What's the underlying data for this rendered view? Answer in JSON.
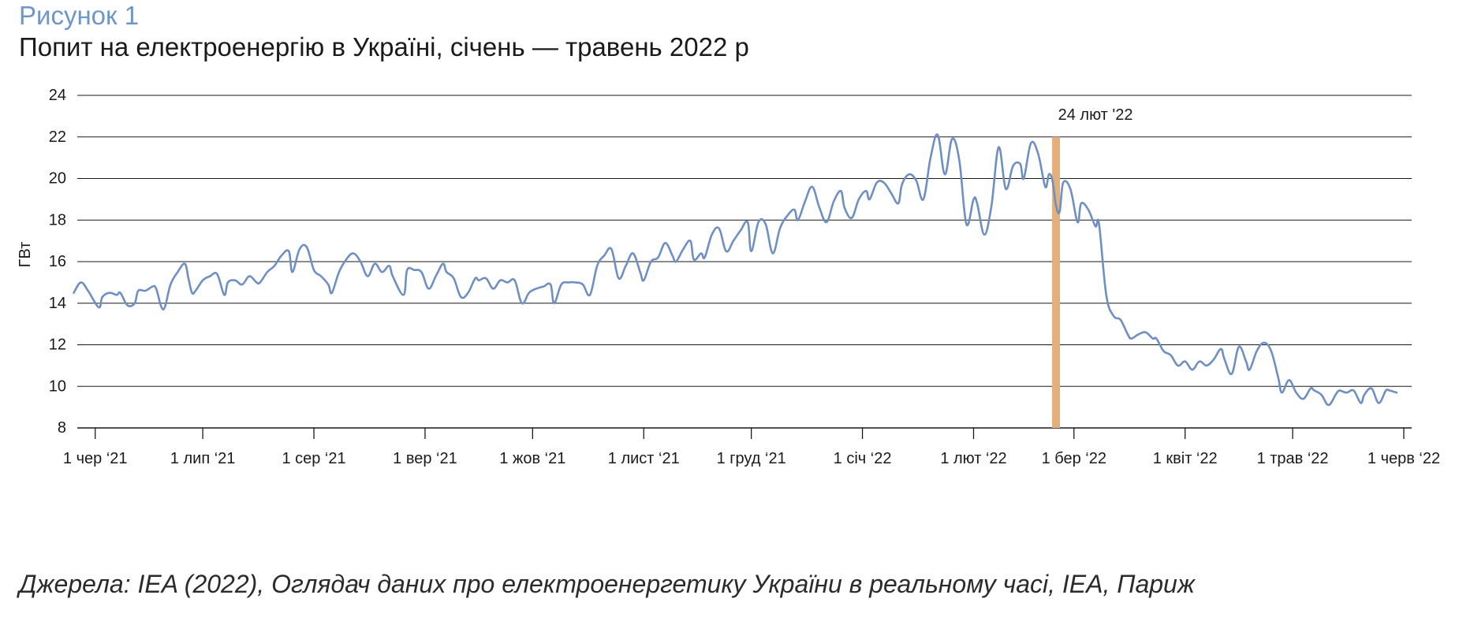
{
  "figure": {
    "label": "Рисунок 1",
    "title": "Попит на електроенергію в Україні, січень — травень 2022 р",
    "source": "Джерела: IEA (2022), Оглядач даних про електроенергетику України в реальному часі, IEA, Париж"
  },
  "colors": {
    "line": "#6f8fc3",
    "marker": "#e3b07c",
    "grid": "#1a1a1a",
    "label_accent": "#6f95c9"
  },
  "chart_data": {
    "type": "line",
    "title": "Попит на електроенергію в Україні, січень — травень 2022 р",
    "xlabel": "",
    "ylabel": "ГВт",
    "ylim": [
      8,
      24
    ],
    "yticks": [
      8,
      10,
      12,
      14,
      16,
      18,
      20,
      22,
      24
    ],
    "xlim": [
      "2021-05-27",
      "2022-06-01"
    ],
    "grid": "horizontal",
    "xticks": [
      {
        "date": "2021-06-01",
        "label": "1 чер ‘21"
      },
      {
        "date": "2021-07-01",
        "label": "1 лип ‘21"
      },
      {
        "date": "2021-08-01",
        "label": "1 сер ‘21"
      },
      {
        "date": "2021-09-01",
        "label": "1 вер ‘21"
      },
      {
        "date": "2021-10-01",
        "label": "1 жов ‘21"
      },
      {
        "date": "2021-11-01",
        "label": "1 лист ‘21"
      },
      {
        "date": "2021-12-01",
        "label": "1 груд ‘21"
      },
      {
        "date": "2022-01-01",
        "label": "1 січ ‘22"
      },
      {
        "date": "2022-02-01",
        "label": "1 лют ‘22"
      },
      {
        "date": "2022-03-01",
        "label": "1 бер ‘22"
      },
      {
        "date": "2022-04-01",
        "label": "1 квіт ‘22"
      },
      {
        "date": "2022-05-01",
        "label": "1 трав ‘22"
      },
      {
        "date": "2022-06-01",
        "label": "1 черв ‘22"
      }
    ],
    "annotation": {
      "date": "2022-02-24",
      "label": "24 лют '22"
    },
    "series": [
      {
        "points": [
          [
            "2021-05-26",
            14.5
          ],
          [
            "2021-05-28",
            15.0
          ],
          [
            "2021-05-30",
            14.6
          ],
          [
            "2021-06-02",
            13.8
          ],
          [
            "2021-06-03",
            14.3
          ],
          [
            "2021-06-05",
            14.5
          ],
          [
            "2021-06-07",
            14.4
          ],
          [
            "2021-06-08",
            14.5
          ],
          [
            "2021-06-10",
            13.9
          ],
          [
            "2021-06-12",
            14.0
          ],
          [
            "2021-06-13",
            14.6
          ],
          [
            "2021-06-15",
            14.6
          ],
          [
            "2021-06-17",
            14.8
          ],
          [
            "2021-06-18",
            14.7
          ],
          [
            "2021-06-20",
            13.7
          ],
          [
            "2021-06-22",
            14.9
          ],
          [
            "2021-06-24",
            15.5
          ],
          [
            "2021-06-26",
            15.9
          ],
          [
            "2021-06-27",
            15.2
          ],
          [
            "2021-06-28",
            14.5
          ],
          [
            "2021-06-29",
            14.6
          ],
          [
            "2021-07-01",
            15.1
          ],
          [
            "2021-07-03",
            15.3
          ],
          [
            "2021-07-05",
            15.4
          ],
          [
            "2021-07-07",
            14.4
          ],
          [
            "2021-07-08",
            15.0
          ],
          [
            "2021-07-10",
            15.1
          ],
          [
            "2021-07-12",
            14.9
          ],
          [
            "2021-07-14",
            15.3
          ],
          [
            "2021-07-16",
            15.0
          ],
          [
            "2021-07-17",
            15.0
          ],
          [
            "2021-07-19",
            15.5
          ],
          [
            "2021-07-21",
            15.8
          ],
          [
            "2021-07-23",
            16.3
          ],
          [
            "2021-07-25",
            16.5
          ],
          [
            "2021-07-26",
            15.5
          ],
          [
            "2021-07-28",
            16.6
          ],
          [
            "2021-07-30",
            16.7
          ],
          [
            "2021-08-01",
            15.6
          ],
          [
            "2021-08-03",
            15.3
          ],
          [
            "2021-08-05",
            14.9
          ],
          [
            "2021-08-06",
            14.5
          ],
          [
            "2021-08-08",
            15.5
          ],
          [
            "2021-08-10",
            16.1
          ],
          [
            "2021-08-12",
            16.4
          ],
          [
            "2021-08-14",
            16.0
          ],
          [
            "2021-08-16",
            15.3
          ],
          [
            "2021-08-18",
            15.9
          ],
          [
            "2021-08-20",
            15.5
          ],
          [
            "2021-08-22",
            15.8
          ],
          [
            "2021-08-23",
            15.3
          ],
          [
            "2021-08-26",
            14.4
          ],
          [
            "2021-08-27",
            15.6
          ],
          [
            "2021-08-29",
            15.6
          ],
          [
            "2021-08-31",
            15.5
          ],
          [
            "2021-09-02",
            14.7
          ],
          [
            "2021-09-04",
            15.3
          ],
          [
            "2021-09-06",
            15.9
          ],
          [
            "2021-09-07",
            15.5
          ],
          [
            "2021-09-09",
            15.2
          ],
          [
            "2021-09-11",
            14.3
          ],
          [
            "2021-09-13",
            14.5
          ],
          [
            "2021-09-15",
            15.2
          ],
          [
            "2021-09-16",
            15.1
          ],
          [
            "2021-09-18",
            15.2
          ],
          [
            "2021-09-20",
            14.7
          ],
          [
            "2021-09-22",
            15.1
          ],
          [
            "2021-09-24",
            15.0
          ],
          [
            "2021-09-26",
            15.1
          ],
          [
            "2021-09-28",
            14.0
          ],
          [
            "2021-09-30",
            14.5
          ],
          [
            "2021-10-02",
            14.7
          ],
          [
            "2021-10-04",
            14.8
          ],
          [
            "2021-10-06",
            14.9
          ],
          [
            "2021-10-07",
            14.0
          ],
          [
            "2021-10-09",
            14.9
          ],
          [
            "2021-10-11",
            15.0
          ],
          [
            "2021-10-13",
            15.0
          ],
          [
            "2021-10-15",
            14.9
          ],
          [
            "2021-10-17",
            14.4
          ],
          [
            "2021-10-19",
            15.8
          ],
          [
            "2021-10-21",
            16.3
          ],
          [
            "2021-10-23",
            16.6
          ],
          [
            "2021-10-25",
            15.2
          ],
          [
            "2021-10-27",
            15.8
          ],
          [
            "2021-10-29",
            16.4
          ],
          [
            "2021-10-31",
            15.5
          ],
          [
            "2021-11-01",
            15.1
          ],
          [
            "2021-11-03",
            16.0
          ],
          [
            "2021-11-05",
            16.2
          ],
          [
            "2021-11-07",
            16.9
          ],
          [
            "2021-11-09",
            16.3
          ],
          [
            "2021-11-10",
            16.0
          ],
          [
            "2021-11-12",
            16.6
          ],
          [
            "2021-11-14",
            17.0
          ],
          [
            "2021-11-15",
            16.1
          ],
          [
            "2021-11-17",
            16.4
          ],
          [
            "2021-11-18",
            16.2
          ],
          [
            "2021-11-20",
            17.3
          ],
          [
            "2021-11-22",
            17.6
          ],
          [
            "2021-11-24",
            16.5
          ],
          [
            "2021-11-26",
            17.0
          ],
          [
            "2021-11-28",
            17.5
          ],
          [
            "2021-11-30",
            17.9
          ],
          [
            "2021-12-01",
            16.5
          ],
          [
            "2021-12-03",
            17.9
          ],
          [
            "2021-12-05",
            17.8
          ],
          [
            "2021-12-07",
            16.4
          ],
          [
            "2021-12-09",
            17.6
          ],
          [
            "2021-12-11",
            18.2
          ],
          [
            "2021-12-13",
            18.5
          ],
          [
            "2021-12-14",
            18.0
          ],
          [
            "2021-12-16",
            18.9
          ],
          [
            "2021-12-18",
            19.6
          ],
          [
            "2021-12-20",
            18.6
          ],
          [
            "2021-12-22",
            17.9
          ],
          [
            "2021-12-24",
            18.9
          ],
          [
            "2021-12-26",
            19.4
          ],
          [
            "2021-12-27",
            18.6
          ],
          [
            "2021-12-29",
            18.1
          ],
          [
            "2021-12-31",
            19.0
          ],
          [
            "2022-01-02",
            19.4
          ],
          [
            "2022-01-03",
            19.0
          ],
          [
            "2022-01-05",
            19.8
          ],
          [
            "2022-01-07",
            19.8
          ],
          [
            "2022-01-09",
            19.3
          ],
          [
            "2022-01-11",
            18.8
          ],
          [
            "2022-01-12",
            19.7
          ],
          [
            "2022-01-14",
            20.2
          ],
          [
            "2022-01-16",
            19.9
          ],
          [
            "2022-01-18",
            19.0
          ],
          [
            "2022-01-20",
            21.0
          ],
          [
            "2022-01-22",
            22.1
          ],
          [
            "2022-01-24",
            20.2
          ],
          [
            "2022-01-26",
            21.9
          ],
          [
            "2022-01-28",
            20.9
          ],
          [
            "2022-01-30",
            17.8
          ],
          [
            "2022-02-01",
            19.0
          ],
          [
            "2022-02-02",
            18.8
          ],
          [
            "2022-02-04",
            17.3
          ],
          [
            "2022-02-06",
            18.7
          ],
          [
            "2022-02-08",
            21.5
          ],
          [
            "2022-02-10",
            19.5
          ],
          [
            "2022-02-12",
            20.6
          ],
          [
            "2022-02-14",
            20.7
          ],
          [
            "2022-02-15",
            20.0
          ],
          [
            "2022-02-17",
            21.7
          ],
          [
            "2022-02-19",
            21.2
          ],
          [
            "2022-02-21",
            19.6
          ],
          [
            "2022-02-22",
            20.2
          ],
          [
            "2022-02-23",
            19.9
          ],
          [
            "2022-02-24",
            18.7
          ],
          [
            "2022-02-25",
            18.4
          ],
          [
            "2022-02-26",
            19.8
          ],
          [
            "2022-02-28",
            19.5
          ],
          [
            "2022-03-02",
            17.9
          ],
          [
            "2022-03-03",
            18.8
          ],
          [
            "2022-03-05",
            18.5
          ],
          [
            "2022-03-07",
            17.7
          ],
          [
            "2022-03-08",
            17.8
          ],
          [
            "2022-03-10",
            14.4
          ],
          [
            "2022-03-12",
            13.4
          ],
          [
            "2022-03-14",
            13.2
          ],
          [
            "2022-03-16",
            12.5
          ],
          [
            "2022-03-17",
            12.3
          ],
          [
            "2022-03-19",
            12.5
          ],
          [
            "2022-03-21",
            12.6
          ],
          [
            "2022-03-23",
            12.3
          ],
          [
            "2022-03-24",
            12.3
          ],
          [
            "2022-03-26",
            11.7
          ],
          [
            "2022-03-28",
            11.5
          ],
          [
            "2022-03-30",
            11.0
          ],
          [
            "2022-04-01",
            11.2
          ],
          [
            "2022-04-03",
            10.8
          ],
          [
            "2022-04-05",
            11.2
          ],
          [
            "2022-04-07",
            11.0
          ],
          [
            "2022-04-09",
            11.3
          ],
          [
            "2022-04-11",
            11.8
          ],
          [
            "2022-04-12",
            11.3
          ],
          [
            "2022-04-14",
            10.6
          ],
          [
            "2022-04-16",
            11.9
          ],
          [
            "2022-04-18",
            11.2
          ],
          [
            "2022-04-19",
            10.8
          ],
          [
            "2022-04-21",
            11.7
          ],
          [
            "2022-04-23",
            12.1
          ],
          [
            "2022-04-25",
            11.7
          ],
          [
            "2022-04-27",
            10.4
          ],
          [
            "2022-04-28",
            9.7
          ],
          [
            "2022-04-30",
            10.3
          ],
          [
            "2022-05-02",
            9.7
          ],
          [
            "2022-05-04",
            9.4
          ],
          [
            "2022-05-06",
            9.9
          ],
          [
            "2022-05-07",
            9.8
          ],
          [
            "2022-05-09",
            9.6
          ],
          [
            "2022-05-11",
            9.1
          ],
          [
            "2022-05-13",
            9.6
          ],
          [
            "2022-05-14",
            9.8
          ],
          [
            "2022-05-16",
            9.7
          ],
          [
            "2022-05-18",
            9.8
          ],
          [
            "2022-05-20",
            9.2
          ],
          [
            "2022-05-21",
            9.6
          ],
          [
            "2022-05-23",
            9.9
          ],
          [
            "2022-05-25",
            9.2
          ],
          [
            "2022-05-27",
            9.8
          ],
          [
            "2022-05-28",
            9.8
          ],
          [
            "2022-05-30",
            9.7
          ]
        ]
      }
    ]
  }
}
